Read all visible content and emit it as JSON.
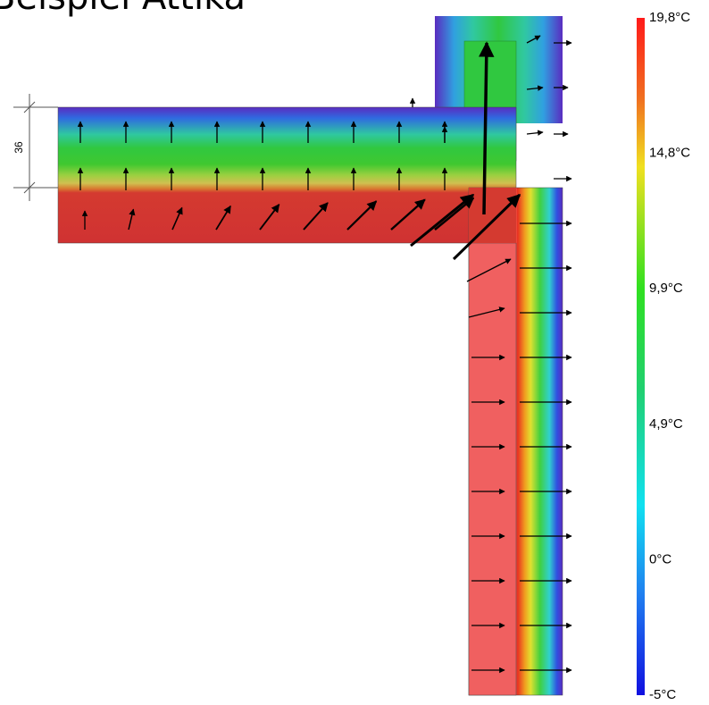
{
  "title": "Beispiel Attika",
  "dimension": {
    "label": "36"
  },
  "scale": {
    "labels": [
      "19,8°C",
      "14,8°C",
      "9,9°C",
      "4,9°C",
      "0°C",
      "-5°C"
    ]
  }
}
